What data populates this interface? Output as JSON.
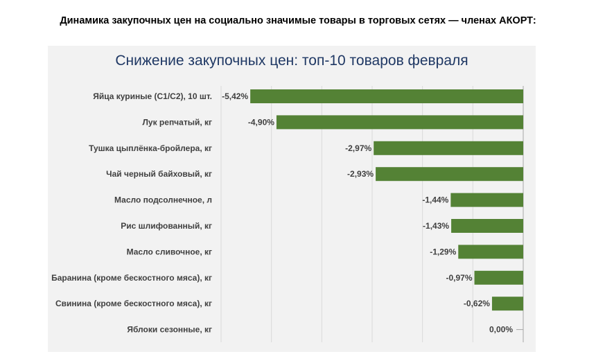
{
  "header": {
    "title": "Динамика закупочных цен на социально значимые товары в торговых сетях — членах АКОРТ:"
  },
  "chart_data": {
    "type": "bar",
    "orientation": "horizontal",
    "title": "Снижение закупочных цен: топ-10 товаров февраля",
    "categories": [
      "Яйца куриные (С1/С2), 10 шт.",
      "Лук репчатый, кг",
      "Тушка цыплёнка-бройлера, кг",
      "Чай черный байховый, кг",
      "Масло подсолнечное,  л",
      "Рис шлифованный, кг",
      "Масло сливочное, кг",
      "Баранина (кроме бескостного мяса), кг",
      "Свинина (кроме бескостного мяса), кг",
      "Яблоки сезонные, кг"
    ],
    "values": [
      -5.42,
      -4.9,
      -2.97,
      -2.93,
      -1.44,
      -1.43,
      -1.29,
      -0.97,
      -0.62,
      0.0
    ],
    "value_labels": [
      "-5,42%",
      "-4,90%",
      "-2,97%",
      "-2,93%",
      "-1,44%",
      "-1,43%",
      "-1,29%",
      "-0,97%",
      "-0,62%",
      "0,00%"
    ],
    "xlim": [
      -6,
      0
    ],
    "grid": true,
    "bar_color": "#548235",
    "zero_line_color": "#a6a6a6",
    "grid_color": "#d9d9d9",
    "title_color": "#1f3864",
    "panel_color": "#f2f2f2"
  }
}
